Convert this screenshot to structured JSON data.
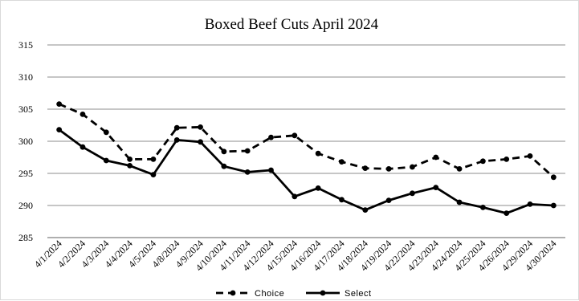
{
  "chart_data": {
    "type": "line",
    "title": "Boxed Beef Cuts April 2024",
    "xlabel": "",
    "ylabel": "",
    "ylim": [
      285,
      315
    ],
    "yticks": [
      285,
      290,
      295,
      300,
      305,
      310,
      315
    ],
    "grid": true,
    "legend_position": "bottom",
    "categories": [
      "4/1/2024",
      "4/2/2024",
      "4/3/2024",
      "4/4/2024",
      "4/5/2024",
      "4/8/2024",
      "4/9/2024",
      "4/10/2024",
      "4/11/2024",
      "4/12/2024",
      "4/15/2024",
      "4/16/2024",
      "4/17/2024",
      "4/18/2024",
      "4/19/2024",
      "4/22/2024",
      "4/23/2024",
      "4/24/2024",
      "4/25/2024",
      "4/26/2024",
      "4/29/2024",
      "4/30/2024"
    ],
    "series": [
      {
        "name": "Choice",
        "style": "dashed",
        "color": "#000000",
        "values": [
          305.8,
          304.2,
          301.4,
          297.2,
          297.2,
          302.1,
          302.2,
          298.4,
          298.5,
          300.6,
          300.9,
          298.1,
          296.8,
          295.8,
          295.7,
          296.0,
          297.5,
          295.7,
          296.9,
          297.2,
          297.7,
          294.4
        ]
      },
      {
        "name": "Select",
        "style": "solid",
        "color": "#000000",
        "values": [
          301.8,
          299.1,
          297.0,
          296.2,
          294.8,
          300.2,
          299.9,
          296.1,
          295.2,
          295.5,
          291.4,
          292.7,
          290.9,
          289.3,
          290.8,
          291.9,
          292.8,
          290.5,
          289.7,
          288.8,
          290.2,
          290.0
        ]
      }
    ]
  }
}
